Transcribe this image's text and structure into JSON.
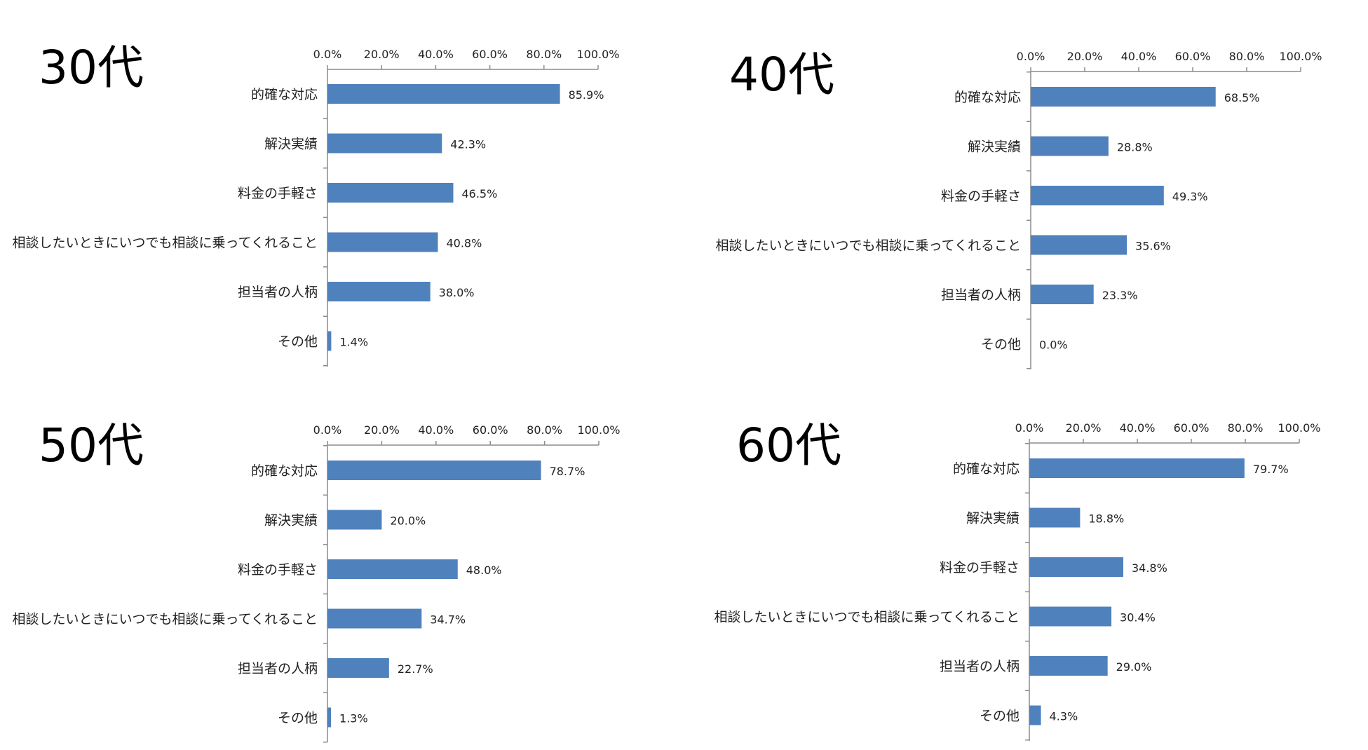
{
  "chart_data": [
    {
      "type": "bar",
      "orientation": "horizontal",
      "title": "30代",
      "categories": [
        "的確な対応",
        "解決実績",
        "料金の手軽さ",
        "相談したいときにいつでも相談に乗ってくれること",
        "担当者の人柄",
        "その他"
      ],
      "values": [
        85.9,
        42.3,
        46.5,
        40.8,
        38.0,
        1.4
      ],
      "data_labels": [
        "85.9%",
        "42.3%",
        "46.5%",
        "40.8%",
        "38.0%",
        "1.4%"
      ],
      "xlim": [
        0,
        100
      ],
      "x_ticks": [
        "0.0%",
        "20.0%",
        "40.0%",
        "60.0%",
        "80.0%",
        "100.0%"
      ],
      "x_axis_position": "top",
      "grid": false,
      "legend": false,
      "bar_color": "#4f81bd"
    },
    {
      "type": "bar",
      "orientation": "horizontal",
      "title": "40代",
      "categories": [
        "的確な対応",
        "解決実績",
        "料金の手軽さ",
        "相談したいときにいつでも相談に乗ってくれること",
        "担当者の人柄",
        "その他"
      ],
      "values": [
        68.5,
        28.8,
        49.3,
        35.6,
        23.3,
        0.0
      ],
      "data_labels": [
        "68.5%",
        "28.8%",
        "49.3%",
        "35.6%",
        "23.3%",
        "0.0%"
      ],
      "xlim": [
        0,
        100
      ],
      "x_ticks": [
        "0.0%",
        "20.0%",
        "40.0%",
        "60.0%",
        "80.0%",
        "100.0%"
      ],
      "x_axis_position": "top",
      "grid": false,
      "legend": false,
      "bar_color": "#4f81bd"
    },
    {
      "type": "bar",
      "orientation": "horizontal",
      "title": "50代",
      "categories": [
        "的確な対応",
        "解決実績",
        "料金の手軽さ",
        "相談したいときにいつでも相談に乗ってくれること",
        "担当者の人柄",
        "その他"
      ],
      "values": [
        78.7,
        20.0,
        48.0,
        34.7,
        22.7,
        1.3
      ],
      "data_labels": [
        "78.7%",
        "20.0%",
        "48.0%",
        "34.7%",
        "22.7%",
        "1.3%"
      ],
      "xlim": [
        0,
        100
      ],
      "x_ticks": [
        "0.0%",
        "20.0%",
        "40.0%",
        "60.0%",
        "80.0%",
        "100.0%"
      ],
      "x_axis_position": "top",
      "grid": false,
      "legend": false,
      "bar_color": "#4f81bd"
    },
    {
      "type": "bar",
      "orientation": "horizontal",
      "title": "60代",
      "categories": [
        "的確な対応",
        "解決実績",
        "料金の手軽さ",
        "相談したいときにいつでも相談に乗ってくれること",
        "担当者の人柄",
        "その他"
      ],
      "values": [
        79.7,
        18.8,
        34.8,
        30.4,
        29.0,
        4.3
      ],
      "data_labels": [
        "79.7%",
        "18.8%",
        "34.8%",
        "30.4%",
        "29.0%",
        "4.3%"
      ],
      "xlim": [
        0,
        100
      ],
      "x_ticks": [
        "0.0%",
        "20.0%",
        "40.0%",
        "60.0%",
        "80.0%",
        "100.0%"
      ],
      "x_axis_position": "top",
      "grid": false,
      "legend": false,
      "bar_color": "#4f81bd"
    }
  ]
}
